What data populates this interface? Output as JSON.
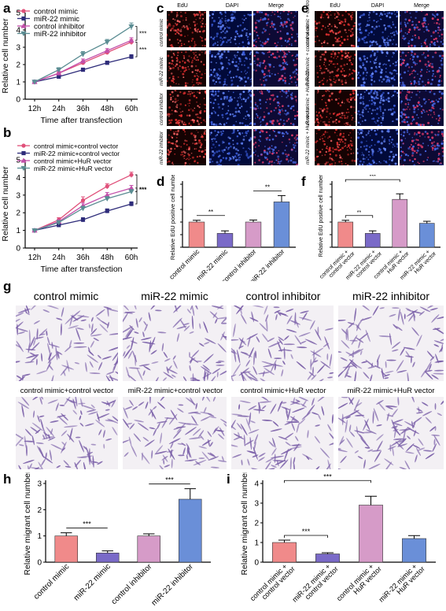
{
  "panels": {
    "a": "a",
    "b": "b",
    "c": "c",
    "d": "d",
    "e": "e",
    "f": "f",
    "g": "g",
    "h": "h",
    "i": "i"
  },
  "micrograph_headers": {
    "edu": "EdU",
    "dapi": "DAPI",
    "merge": "Merge"
  },
  "panel_c_rows": [
    "control mimic",
    "miR-22 mimic",
    "control inhibitor",
    "miR-22 inhibitor"
  ],
  "panel_e_rows": [
    "control mimic + control vector",
    "miR-22 mimic + control vector",
    "control mimic + HuR vector",
    "miR-22 mimic + HuR vector"
  ],
  "panel_g_labels": [
    "control mimic",
    "miR-22 mimic",
    "control inhibitor",
    "miR-22 inhibitor",
    "control mimic+control vector",
    "miR-22 mimic+control vector",
    "control mimic+HuR vector",
    "miR-22 mimic+HuR vector"
  ],
  "chart_data": [
    {
      "id": "a",
      "type": "line",
      "ylabel": "Relative cell number",
      "xlabel": "Time after transfection",
      "x": [
        "12h",
        "24h",
        "36h",
        "48h",
        "60h"
      ],
      "ylim": [
        0,
        5
      ],
      "yticks": [
        0,
        1,
        2,
        3,
        4,
        5
      ],
      "series": [
        {
          "name": "control mimic",
          "color": "#e0507a",
          "marker": "circle",
          "values": [
            1,
            1.5,
            2.1,
            2.7,
            3.3
          ],
          "err": [
            0.08,
            0.1,
            0.1,
            0.12,
            0.15
          ]
        },
        {
          "name": "miR-22 mimic",
          "color": "#2e2c7a",
          "marker": "square",
          "values": [
            1,
            1.3,
            1.7,
            2.1,
            2.45
          ],
          "err": [
            0.06,
            0.08,
            0.1,
            0.1,
            0.12
          ]
        },
        {
          "name": "control inhibitor",
          "color": "#c24faa",
          "marker": "triangle-up",
          "values": [
            1,
            1.5,
            2.2,
            2.8,
            3.4
          ],
          "err": [
            0.08,
            0.1,
            0.12,
            0.12,
            0.15
          ]
        },
        {
          "name": "miR-22 inhibitor",
          "color": "#5b8d93",
          "marker": "triangle-down",
          "values": [
            1,
            1.7,
            2.6,
            3.3,
            4.2
          ],
          "err": [
            0.1,
            0.12,
            0.15,
            0.15,
            0.2
          ]
        }
      ],
      "significance": [
        "***",
        "***"
      ]
    },
    {
      "id": "b",
      "type": "line",
      "ylabel": "Relative cell number",
      "xlabel": "Time after transfection",
      "x": [
        "12h",
        "24h",
        "36h",
        "48h",
        "60h"
      ],
      "ylim": [
        0,
        5
      ],
      "yticks": [
        0,
        1,
        2,
        3,
        4,
        5
      ],
      "series": [
        {
          "name": "control mimic+control vector",
          "color": "#e0507a",
          "marker": "circle",
          "values": [
            1,
            1.6,
            2.7,
            3.5,
            4.15
          ],
          "err": [
            0.08,
            0.12,
            0.2,
            0.15,
            0.15
          ]
        },
        {
          "name": "miR-22 mimic+control vector",
          "color": "#2e2c7a",
          "marker": "square",
          "values": [
            1,
            1.3,
            1.6,
            2.1,
            2.5
          ],
          "err": [
            0.06,
            0.08,
            0.12,
            0.12,
            0.12
          ]
        },
        {
          "name": "control mimic+HuR vector",
          "color": "#c24faa",
          "marker": "triangle-up",
          "values": [
            1,
            1.5,
            2.4,
            3.0,
            3.4
          ],
          "err": [
            0.08,
            0.1,
            0.15,
            0.15,
            0.15
          ]
        },
        {
          "name": "miR-22 mimic+HuR vector",
          "color": "#5b8d93",
          "marker": "triangle-down",
          "values": [
            1,
            1.45,
            2.25,
            2.8,
            3.2
          ],
          "err": [
            0.08,
            0.1,
            0.12,
            0.12,
            0.12
          ]
        }
      ],
      "significance": [
        "***",
        "***"
      ]
    },
    {
      "id": "d",
      "type": "bar",
      "ylabel": "Relative EdU positive cell number",
      "categories": [
        "control mimic",
        "miR-22 mimic",
        "control inhibitor",
        "miR-22 inhibitor"
      ],
      "colors": [
        "#f08a8a",
        "#7a6ac8",
        "#d69bc8",
        "#6a8fd8"
      ],
      "values": [
        1.0,
        0.55,
        1.0,
        1.8
      ],
      "err": [
        0.07,
        0.1,
        0.08,
        0.25
      ],
      "ylim": [
        0,
        2.5
      ],
      "brackets": [
        {
          "from": 0,
          "to": 1,
          "label": "**"
        },
        {
          "from": 2,
          "to": 3,
          "label": "**"
        }
      ]
    },
    {
      "id": "f",
      "type": "bar",
      "ylabel": "Relative EdU positive cell number",
      "categories": [
        "control mimic + control vector",
        "miR-22 mimic + control vector",
        "control mimic + HuR vector",
        "miR-22 mimic + HuR vector"
      ],
      "colors": [
        "#f08a8a",
        "#7a6ac8",
        "#d69bc8",
        "#6a8fd8"
      ],
      "values": [
        1.0,
        0.55,
        1.9,
        0.95
      ],
      "err": [
        0.07,
        0.1,
        0.22,
        0.08
      ],
      "ylim": [
        0,
        2.5
      ],
      "brackets": [
        {
          "from": 0,
          "to": 1,
          "label": "**"
        },
        {
          "from": 0,
          "to": 2,
          "label": "***"
        }
      ]
    },
    {
      "id": "h",
      "type": "bar",
      "ylabel": "Relative migrant cell number",
      "categories": [
        "control mimic",
        "miR-22 mimic",
        "control inhibitor",
        "miR-22 inhibitor"
      ],
      "colors": [
        "#f08a8a",
        "#7a6ac8",
        "#d69bc8",
        "#6a8fd8"
      ],
      "values": [
        1.0,
        0.35,
        1.0,
        2.4
      ],
      "err": [
        0.12,
        0.08,
        0.08,
        0.4
      ],
      "ylim": [
        0,
        3
      ],
      "yticks": [
        0,
        1,
        2,
        3
      ],
      "brackets": [
        {
          "from": 0,
          "to": 1,
          "label": "***"
        },
        {
          "from": 2,
          "to": 3,
          "label": "***"
        }
      ]
    },
    {
      "id": "i",
      "type": "bar",
      "ylabel": "Relative migrant cell number",
      "categories": [
        "control mimic + control vector",
        "miR-22 mimic + control vector",
        "control mimic + HuR vector",
        "miR-22 mimic + HuR vector"
      ],
      "colors": [
        "#f08a8a",
        "#7a6ac8",
        "#d69bc8",
        "#6a8fd8"
      ],
      "values": [
        1.0,
        0.42,
        2.9,
        1.2
      ],
      "err": [
        0.12,
        0.06,
        0.45,
        0.15
      ],
      "ylim": [
        0,
        4
      ],
      "yticks": [
        0,
        1,
        2,
        3,
        4
      ],
      "brackets": [
        {
          "from": 0,
          "to": 1,
          "label": "***"
        },
        {
          "from": 0,
          "to": 2,
          "label": "***"
        }
      ]
    }
  ]
}
